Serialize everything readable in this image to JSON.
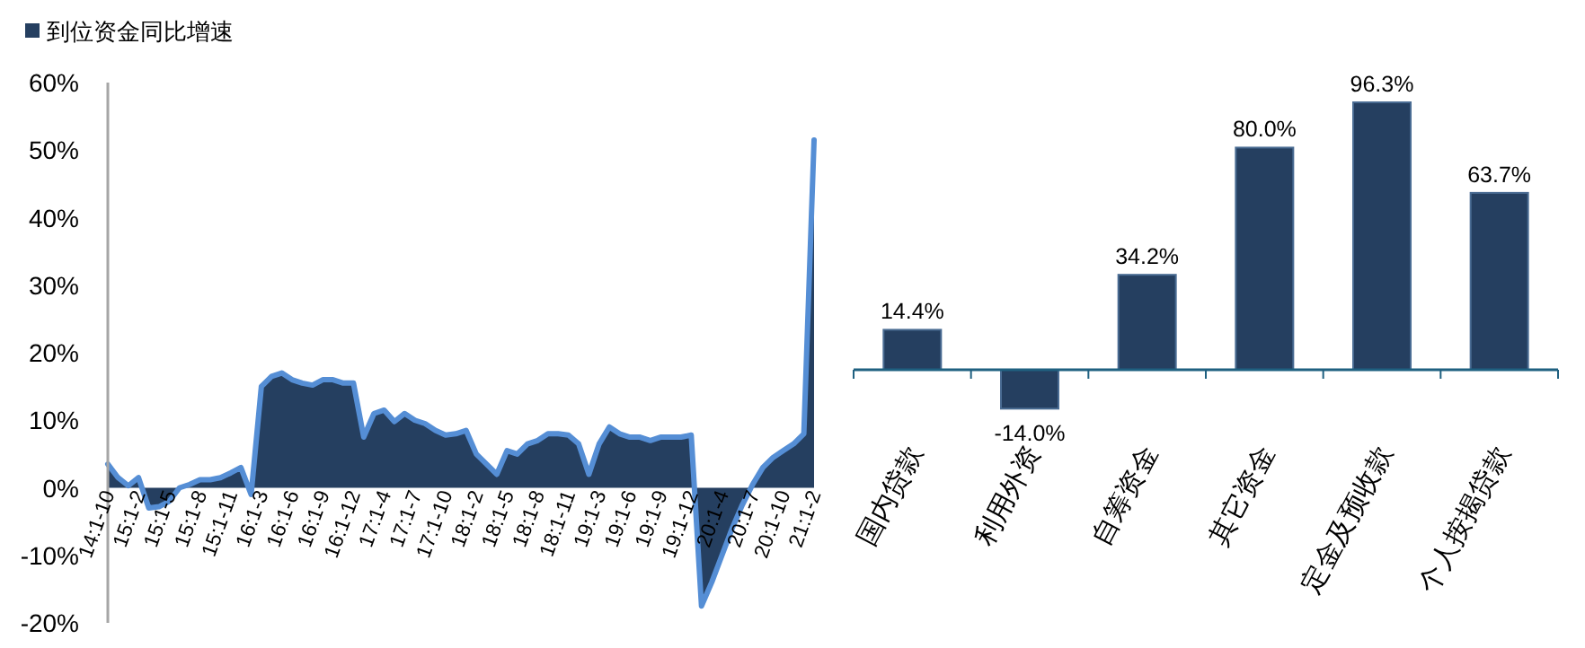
{
  "chart_data": [
    {
      "type": "area",
      "categories": [
        "14:1-10",
        null,
        null,
        "15:1-2",
        null,
        null,
        "15:1-5",
        null,
        null,
        "15:1-8",
        null,
        null,
        "15:1-11",
        null,
        null,
        "16:1-3",
        null,
        null,
        "16:1-6",
        null,
        null,
        "16:1-9",
        null,
        null,
        "16:1-12",
        null,
        null,
        "17:1-4",
        null,
        null,
        "17:1-7",
        null,
        null,
        "17:1-10",
        null,
        null,
        "18:1-2",
        null,
        null,
        "18:1-5",
        null,
        null,
        "18:1-8",
        null,
        null,
        "18:1-11",
        null,
        null,
        "19:1-3",
        null,
        null,
        "19:1-6",
        null,
        null,
        "19:1-9",
        null,
        null,
        "19:1-12",
        null,
        null,
        "20:1-4",
        null,
        null,
        "20:1-7",
        null,
        null,
        "20:1-10",
        null,
        null,
        "21:1-2"
      ],
      "series": [
        {
          "type": "area",
          "name": "到位资金同比增速",
          "color": "#253f60",
          "values": [
            3.5,
            1.5,
            0.3,
            1.5,
            -3,
            -2.8,
            -2,
            0,
            0.5,
            1.2,
            1.2,
            1.5,
            2.2,
            3,
            -1,
            15,
            16.5,
            17,
            16,
            15.5,
            15.2,
            16,
            16,
            15.5,
            15.5,
            7.5,
            11,
            11.5,
            9.8,
            11,
            10,
            9.5,
            8.5,
            7.8,
            8,
            8.5,
            5,
            3.5,
            2,
            5.5,
            5,
            6.5,
            7,
            8,
            8,
            7.8,
            6.5,
            2,
            6.5,
            9,
            8,
            7.5,
            7.5,
            7,
            7.5,
            7.5,
            7.5,
            7.8,
            -17.5,
            -14,
            -10,
            -6,
            -2.5,
            0.5,
            3,
            4.5,
            5.5,
            6.5,
            8,
            51.5
          ]
        }
      ],
      "ylim": [
        -20,
        60
      ],
      "yticks": [
        {
          "value": -20,
          "label": "-20%"
        },
        {
          "value": -10,
          "label": "-10%"
        },
        {
          "value": 0,
          "label": "0%"
        },
        {
          "value": 10,
          "label": "10%"
        },
        {
          "value": 20,
          "label": "20%"
        },
        {
          "value": 30,
          "label": "30%"
        },
        {
          "value": 40,
          "label": "40%"
        },
        {
          "value": 50,
          "label": "50%"
        },
        {
          "value": 60,
          "label": "60%"
        }
      ],
      "legend": "top left"
    },
    {
      "type": "bar",
      "categories": [
        "国内贷款",
        "利用外资",
        "自筹资金",
        "其它资金",
        "定金及预收款",
        "个人按揭贷款"
      ],
      "values": [
        14.4,
        -14.0,
        34.2,
        80.0,
        96.3,
        63.7
      ],
      "value_labels": [
        "14.4%",
        "-14.0%",
        "34.2%",
        "80.0%",
        "96.3%",
        "63.7%"
      ],
      "color": "#253f60",
      "ref_lines": [
        {
          "axis": "y",
          "value": 0,
          "color": "#1f6080"
        }
      ]
    }
  ]
}
